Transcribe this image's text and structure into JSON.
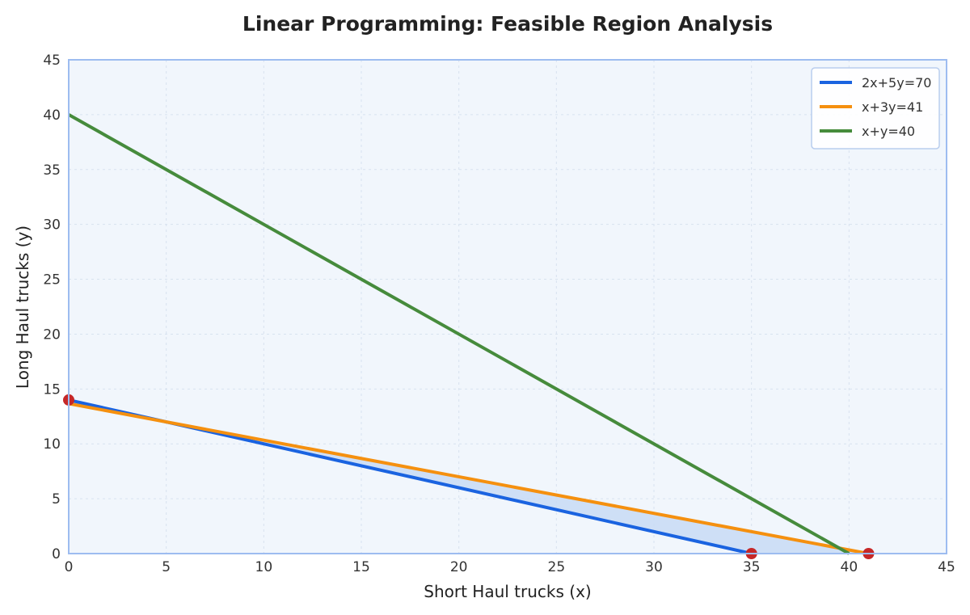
{
  "chart_data": {
    "type": "line",
    "title": "Linear Programming: Feasible Region Analysis",
    "xlabel": "Short Haul trucks (x)",
    "ylabel": "Long Haul trucks (y)",
    "xlim": [
      0,
      45
    ],
    "ylim": [
      0,
      45
    ],
    "xticks": [
      0,
      5,
      10,
      15,
      20,
      25,
      30,
      35,
      40,
      45
    ],
    "yticks": [
      0,
      5,
      10,
      15,
      20,
      25,
      30,
      35,
      40,
      45
    ],
    "grid": true,
    "legend_position": "top-right",
    "series": [
      {
        "name": "2x+5y=70",
        "color": "#1a63e0",
        "points": [
          [
            0,
            14
          ],
          [
            35,
            0
          ]
        ]
      },
      {
        "name": "x+3y=41",
        "color": "#f5900f",
        "points": [
          [
            0,
            13.667
          ],
          [
            41,
            0
          ]
        ]
      },
      {
        "name": "x+y=40",
        "color": "#468b3c",
        "points": [
          [
            0,
            40
          ],
          [
            40,
            0
          ]
        ]
      }
    ],
    "feasible_region": {
      "fill": "#c8daf5",
      "vertices": [
        [
          0,
          14
        ],
        [
          0,
          13.667
        ],
        [
          41,
          0
        ],
        [
          35,
          0
        ]
      ]
    },
    "vertices_marked": {
      "color": "#c62828",
      "points": [
        [
          0,
          14
        ],
        [
          35,
          0
        ],
        [
          41,
          0
        ]
      ]
    },
    "colors": {
      "plot_background": "#f1f6fc",
      "frame": "#9dbcf0"
    }
  }
}
